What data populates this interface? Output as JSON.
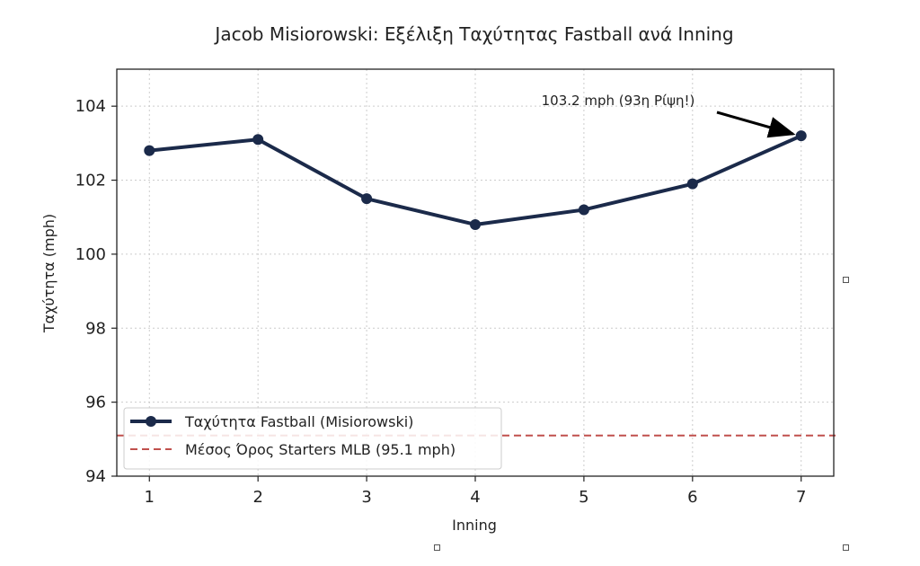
{
  "chart_data": {
    "type": "line",
    "title": "Jacob Misiorowski: Εξέλιξη Ταχύτητας Fastball ανά Inning",
    "xlabel": "Inning",
    "ylabel": "Ταχύτητα (mph)",
    "x": [
      1,
      2,
      3,
      4,
      5,
      6,
      7
    ],
    "xlim": [
      0.7,
      7.3
    ],
    "ylim": [
      94,
      105
    ],
    "yticks": [
      94,
      96,
      98,
      100,
      102,
      104
    ],
    "grid": true,
    "legend_position": "lower-left",
    "series": [
      {
        "name": "Ταχύτητα Fastball (Misiorowski)",
        "values": [
          102.8,
          103.1,
          101.5,
          100.8,
          101.2,
          101.9,
          103.2
        ],
        "color": "#1b2a4a"
      }
    ],
    "reference_line": {
      "name": "Μέσος Όρος Starters MLB (95.1 mph)",
      "value": 95.1,
      "color": "#c0504d"
    },
    "annotation": {
      "text": "103.2 mph (93η Ρίψη!)",
      "x": 7,
      "y": 103.2
    }
  }
}
